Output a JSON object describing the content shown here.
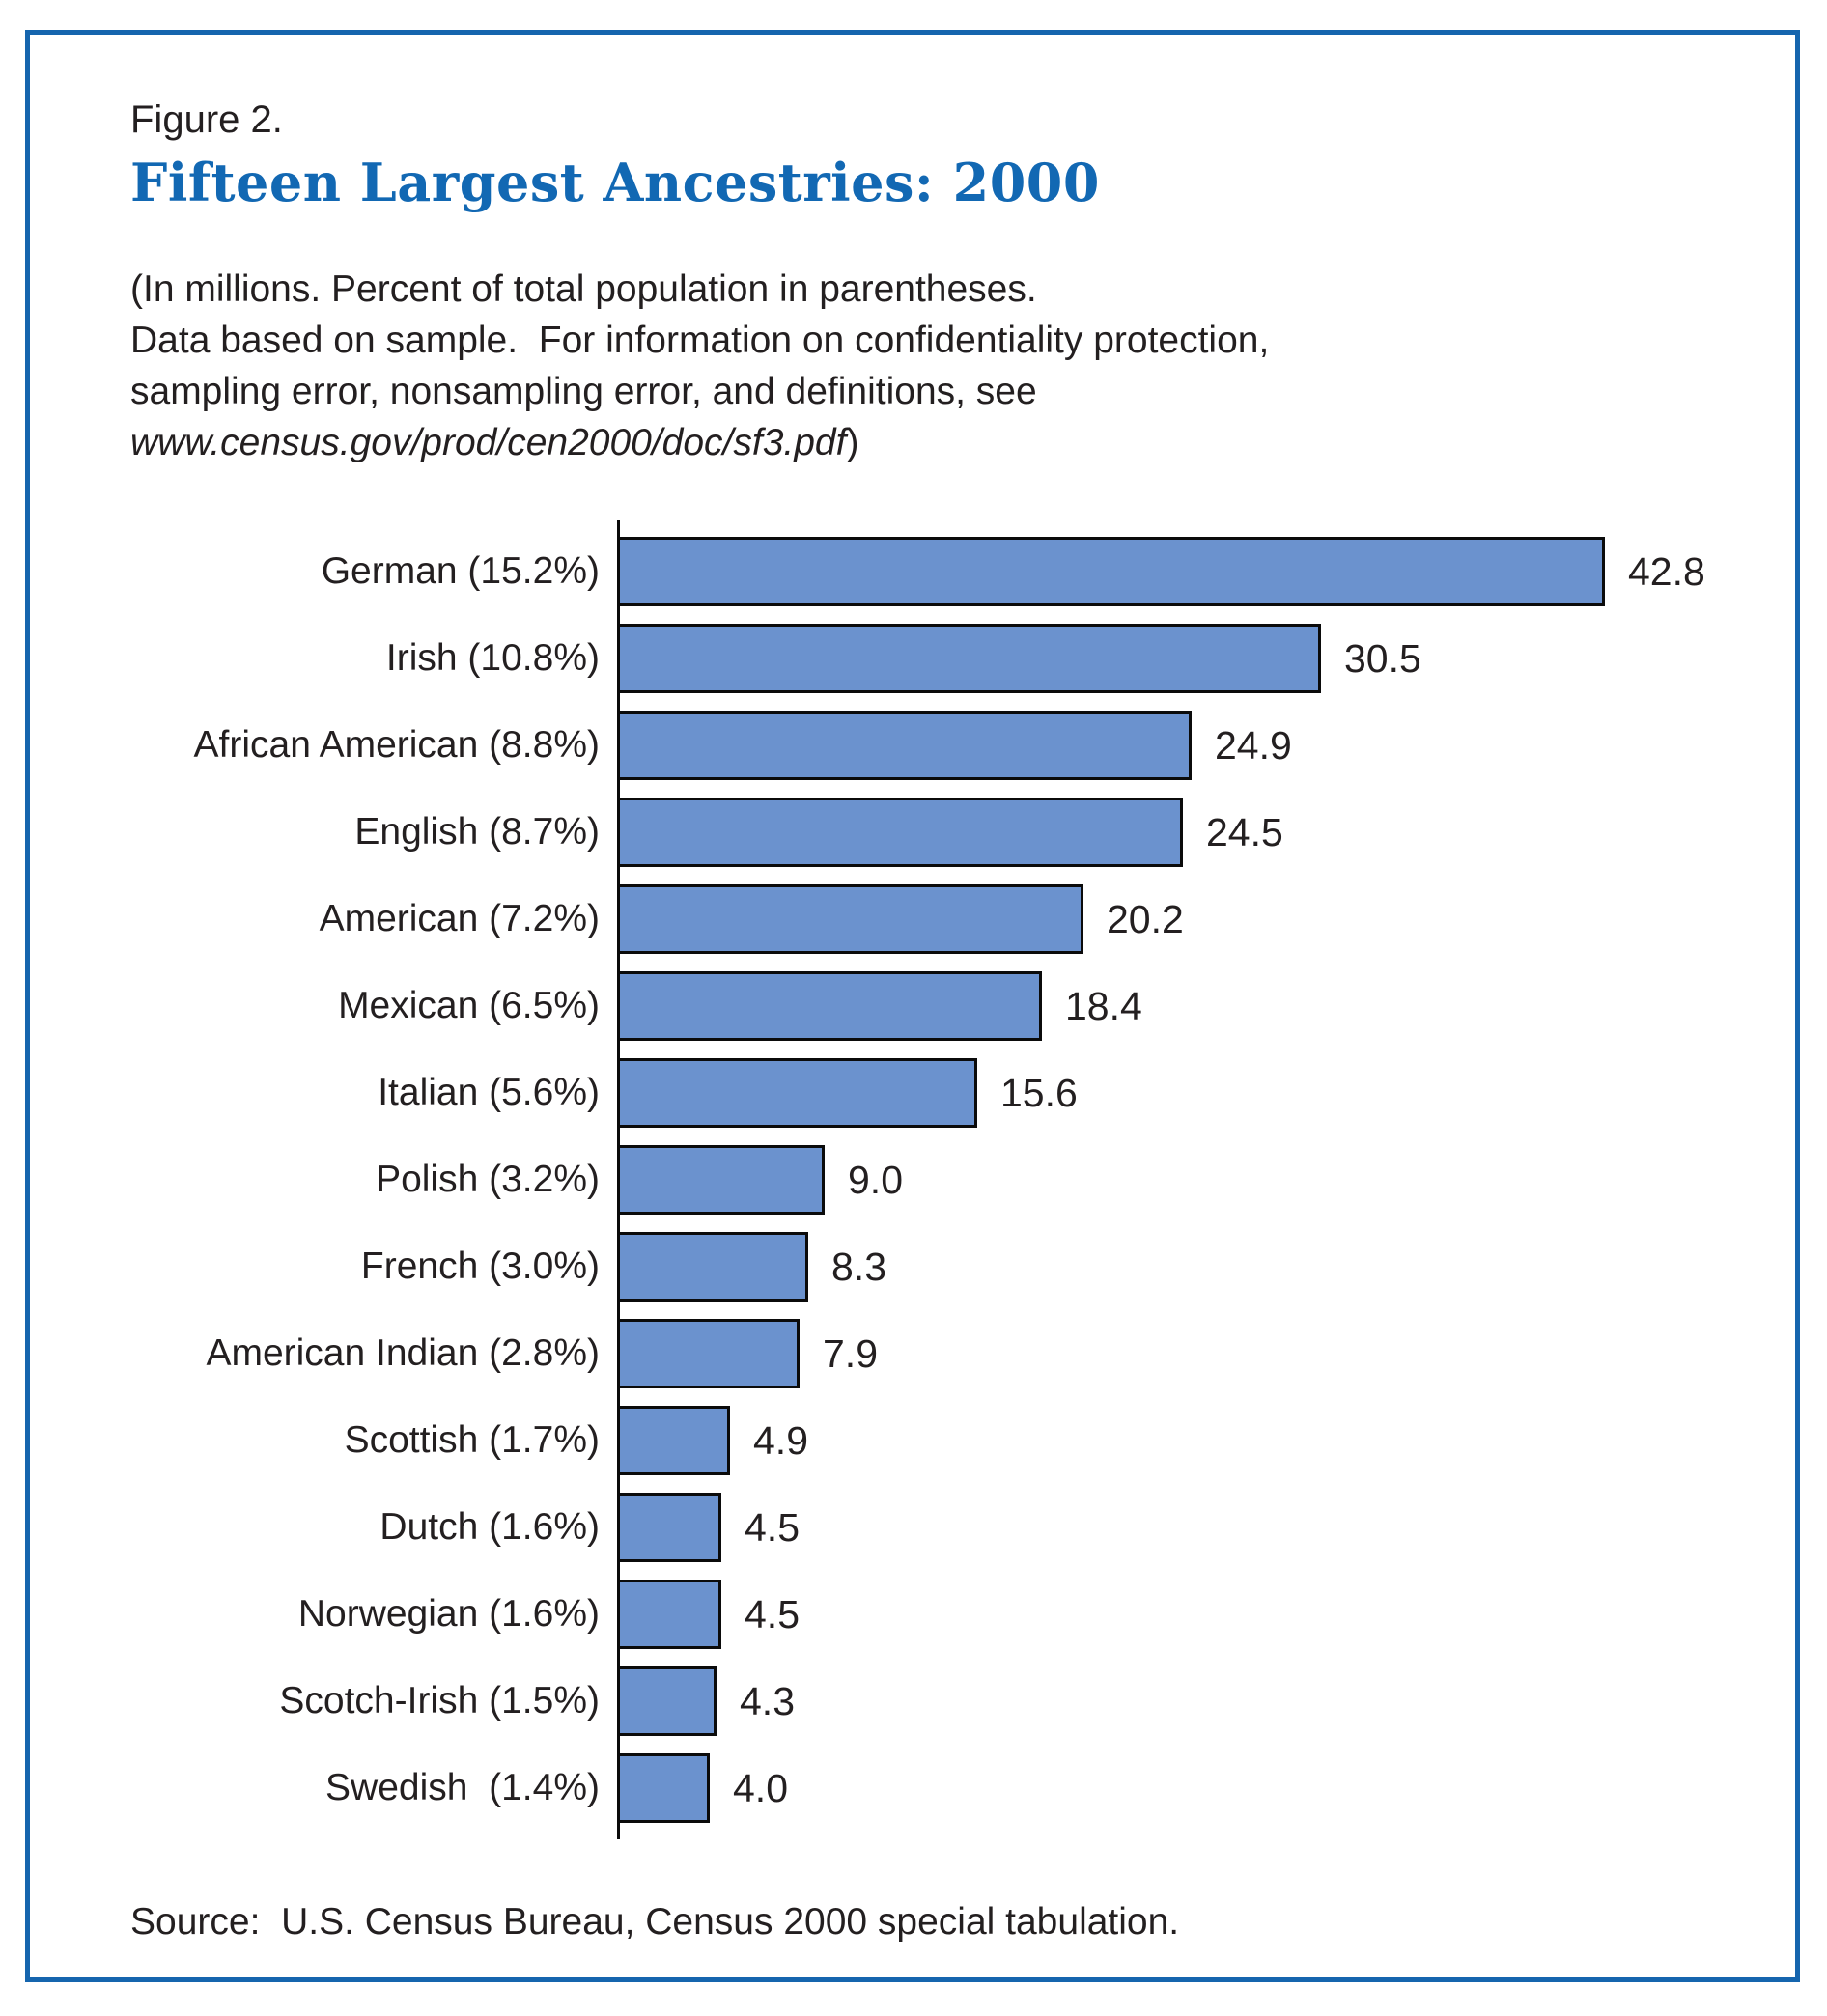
{
  "page": {
    "background_color": "#ffffff",
    "frame_border_color": "#1565AE",
    "text_color": "#231f20"
  },
  "header": {
    "figure_label": "Figure 2.",
    "title": "Fifteen Largest Ancestries: 2000",
    "title_color": "#1268B3",
    "note_lines": [
      "(In millions. Percent of total population in parentheses.",
      "Data based on sample.  For information on confidentiality protection,",
      "sampling error, nonsampling error, and definitions, see"
    ],
    "note_url": "www.census.gov/prod/cen2000/doc/sf3.pdf",
    "note_url_suffix": ")"
  },
  "chart_data": {
    "type": "bar",
    "orientation": "horizontal",
    "unit": "millions",
    "title": "Fifteen Largest Ancestries: 2000",
    "xlabel": "",
    "ylabel": "",
    "xlim": [
      0,
      45
    ],
    "grid": false,
    "legend": false,
    "bar_color": "#6B92CE",
    "bar_border_color": "#0b0b0b",
    "categories": [
      "German",
      "Irish",
      "African American",
      "English",
      "American",
      "Mexican",
      "Italian",
      "Polish",
      "French",
      "American Indian",
      "Scottish",
      "Dutch",
      "Norwegian",
      "Scotch-Irish",
      "Swedish"
    ],
    "percent_of_population": [
      15.2,
      10.8,
      8.8,
      8.7,
      7.2,
      6.5,
      5.6,
      3.2,
      3.0,
      2.8,
      1.7,
      1.6,
      1.6,
      1.5,
      1.4
    ],
    "values": [
      42.8,
      30.5,
      24.9,
      24.5,
      20.2,
      18.4,
      15.6,
      9.0,
      8.3,
      7.9,
      4.9,
      4.5,
      4.5,
      4.3,
      4.0
    ],
    "display_labels": [
      "German (15.2%)",
      "Irish (10.8%)",
      "African American (8.8%)",
      "English (8.7%)",
      "American (7.2%)",
      "Mexican (6.5%)",
      "Italian (5.6%)",
      "Polish (3.2%)",
      "French (3.0%)",
      "American Indian (2.8%)",
      "Scottish (1.7%)",
      "Dutch (1.6%)",
      "Norwegian (1.6%)",
      "Scotch-Irish (1.5%)",
      "Swedish  (1.4%)"
    ],
    "value_labels": [
      "42.8",
      "30.5",
      "24.9",
      "24.5",
      "20.2",
      "18.4",
      "15.6",
      "9.0",
      "8.3",
      "7.9",
      "4.9",
      "4.5",
      "4.5",
      "4.3",
      "4.0"
    ]
  },
  "footer": {
    "source": "Source:  U.S. Census Bureau, Census 2000 special tabulation."
  }
}
